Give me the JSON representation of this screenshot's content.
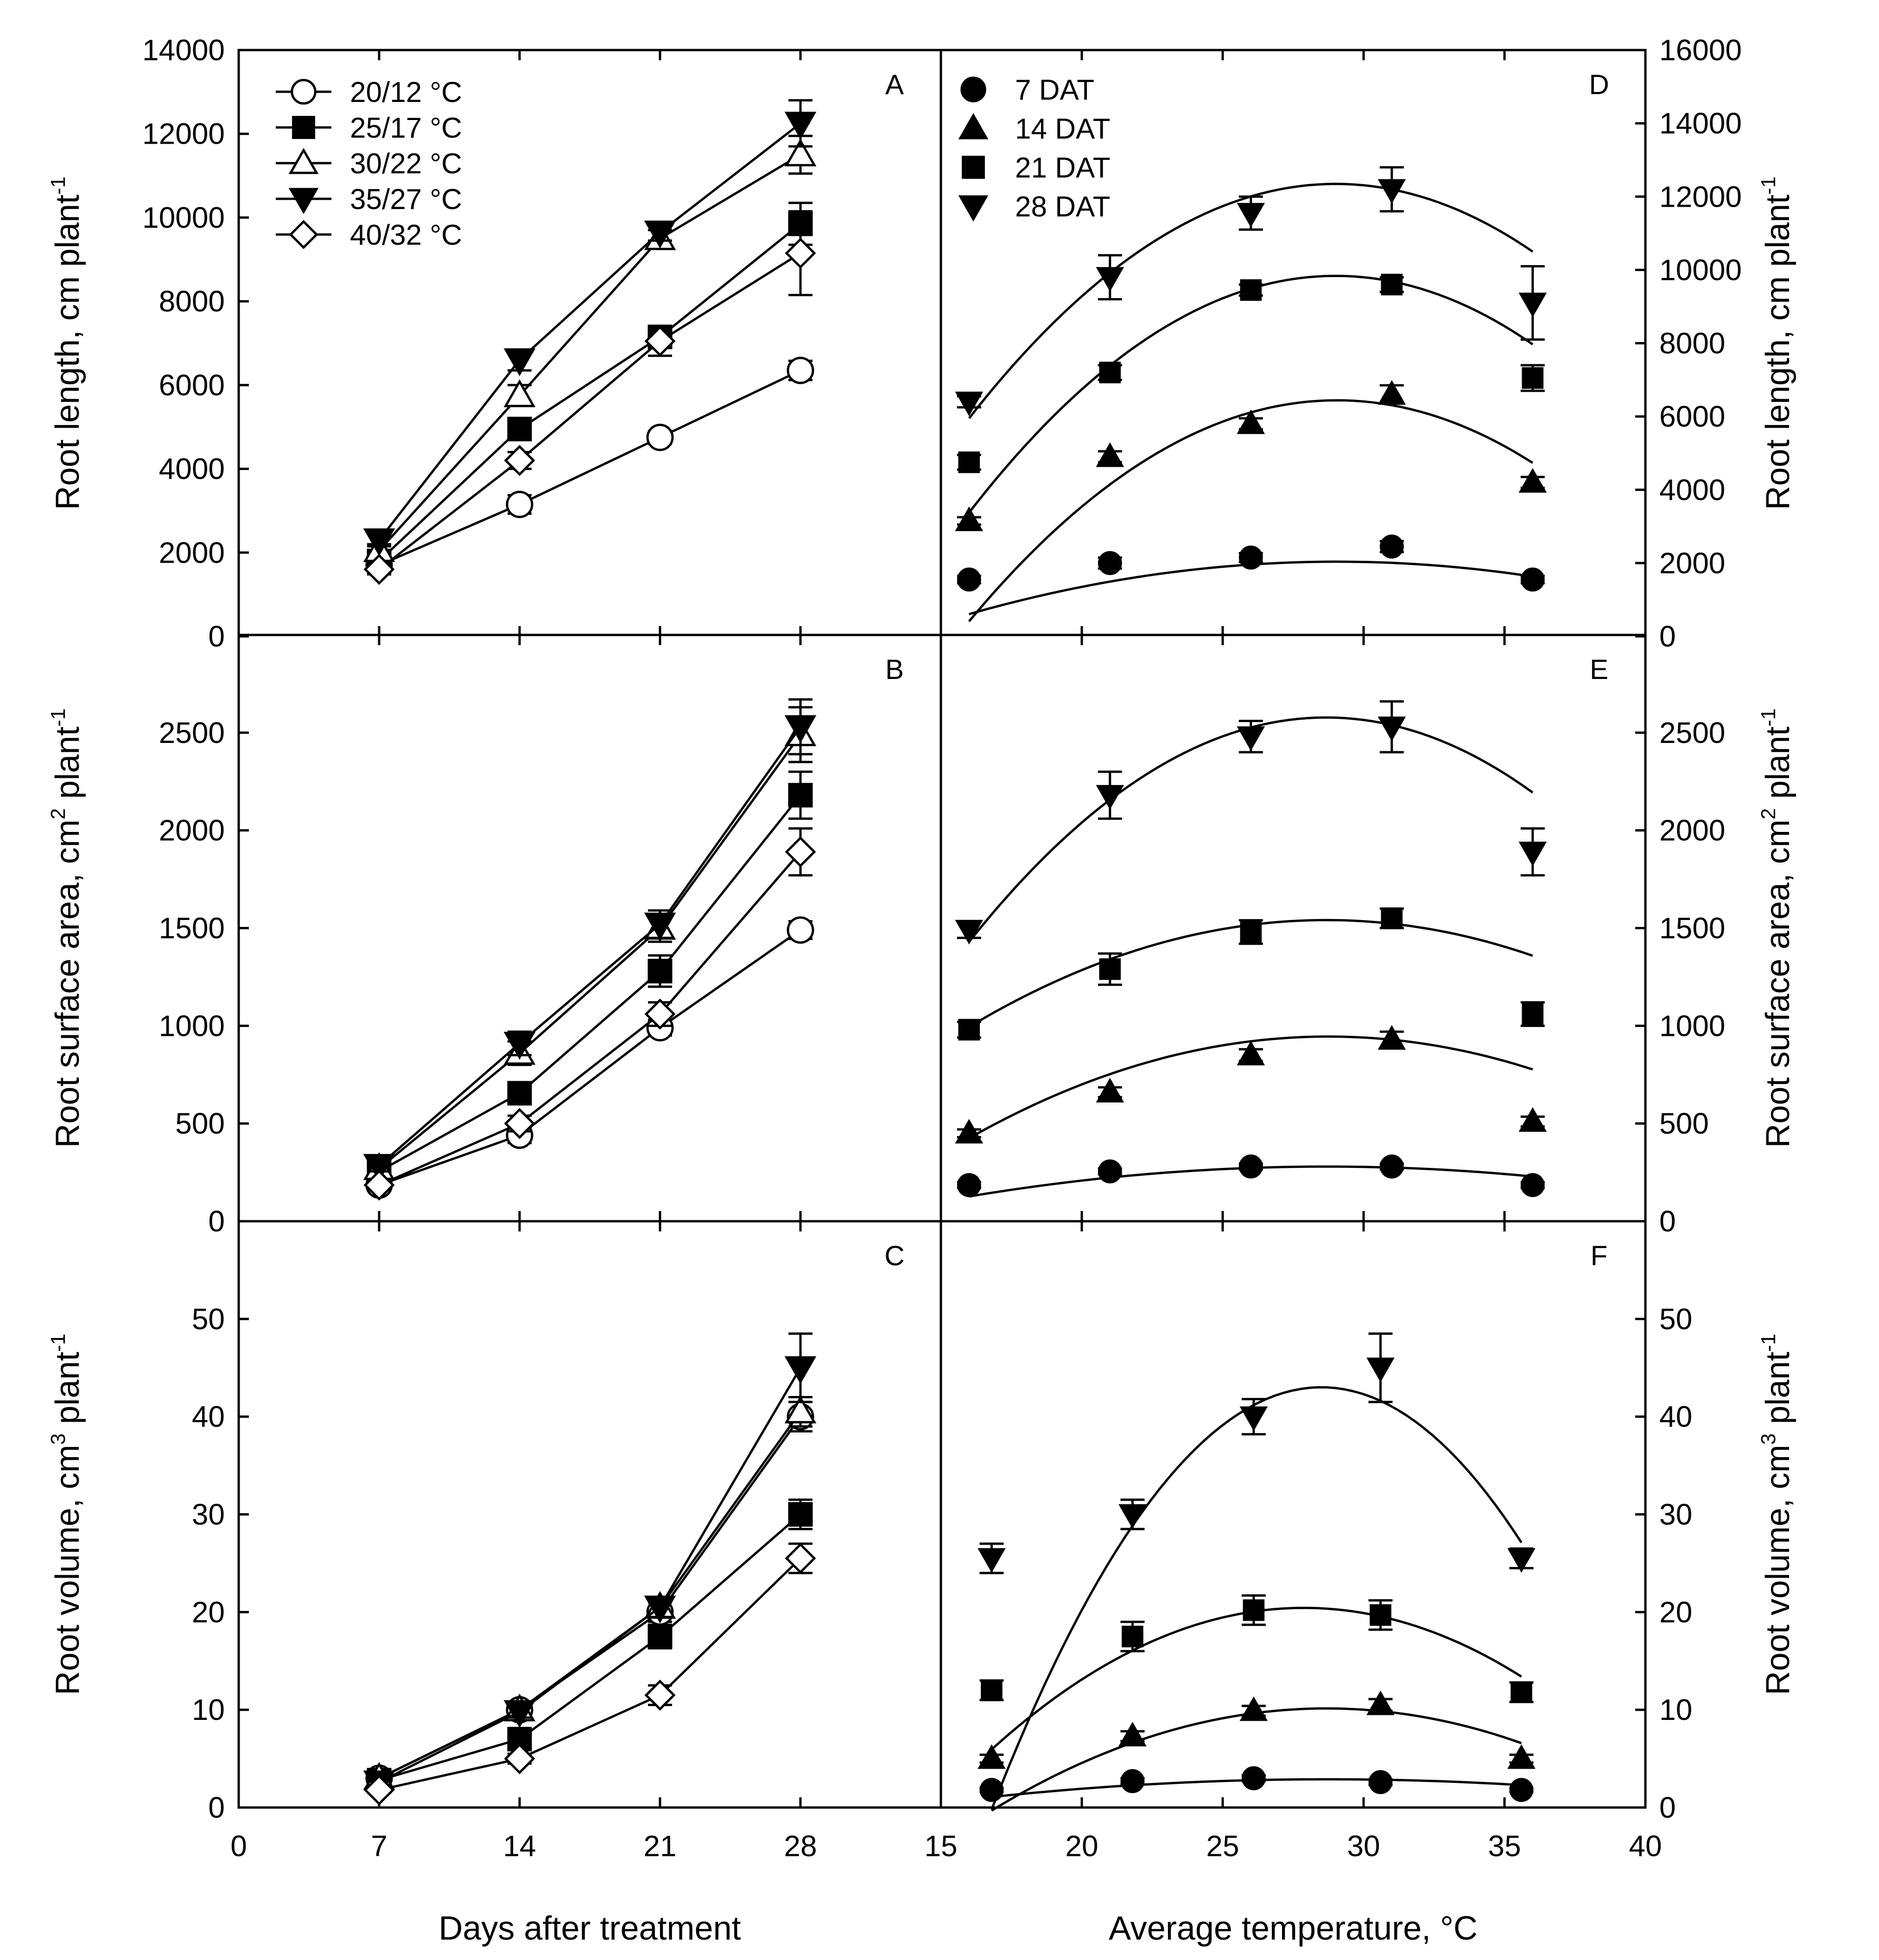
{
  "chart_data": [
    {
      "panel": "A",
      "type": "line",
      "ylabel": "Root length, cm plant",
      "ylabel_sup": "-1",
      "xticks": [
        "0",
        "7",
        "14",
        "21",
        "28"
      ],
      "xlim": [
        0,
        35
      ],
      "ylim": [
        0,
        14000
      ],
      "yticks": [
        "0",
        "2000",
        "4000",
        "6000",
        "8000",
        "10000",
        "12000",
        "14000"
      ],
      "legend": [
        "20/12 °C",
        "25/17 °C",
        "30/22 °C",
        "35/27 °C",
        "40/32 °C"
      ],
      "x": [
        7,
        14,
        21,
        28
      ],
      "series": [
        {
          "name": "20/12 °C",
          "marker": "circle-open",
          "values": [
            1700,
            3150,
            4750,
            6350
          ],
          "errors": [
            120,
            220,
            150,
            230
          ]
        },
        {
          "name": "25/17 °C",
          "marker": "square-filled",
          "values": [
            1800,
            4950,
            7150,
            9850
          ],
          "errors": [
            120,
            150,
            200,
            500
          ]
        },
        {
          "name": "30/22 °C",
          "marker": "triangle-up-open",
          "values": [
            2050,
            5750,
            9500,
            11500
          ],
          "errors": [
            150,
            250,
            200,
            450
          ]
        },
        {
          "name": "35/27 °C",
          "marker": "triangle-down-filled",
          "values": [
            2300,
            6600,
            9650,
            12250
          ],
          "errors": [
            150,
            250,
            200,
            550
          ]
        },
        {
          "name": "40/32 °C",
          "marker": "diamond-open",
          "values": [
            1600,
            4200,
            7050,
            9150
          ],
          "errors": [
            120,
            200,
            350,
            1000
          ]
        }
      ]
    },
    {
      "panel": "B",
      "type": "line",
      "ylabel": "Root surface area, cm",
      "ylabel_sup": "2",
      "ylabel_tail": " plant",
      "ylabel_sup2": "-1",
      "xticks": [
        "0",
        "7",
        "14",
        "21",
        "28"
      ],
      "xlim": [
        0,
        35
      ],
      "ylim": [
        0,
        3000
      ],
      "yticks": [
        "0",
        "500",
        "1000",
        "1500",
        "2000",
        "2500"
      ],
      "x": [
        7,
        14,
        21,
        28
      ],
      "series": [
        {
          "name": "20/12 °C",
          "marker": "circle-open",
          "values": [
            185,
            440,
            990,
            1490
          ],
          "errors": [
            25,
            40,
            40,
            45
          ]
        },
        {
          "name": "25/17 °C",
          "marker": "square-filled",
          "values": [
            255,
            655,
            1280,
            2180
          ],
          "errors": [
            30,
            35,
            80,
            120
          ]
        },
        {
          "name": "30/22 °C",
          "marker": "triangle-up-open",
          "values": [
            270,
            860,
            1500,
            2490
          ],
          "errors": [
            30,
            60,
            70,
            140
          ]
        },
        {
          "name": "35/27 °C",
          "marker": "triangle-down-filled",
          "values": [
            285,
            910,
            1520,
            2530
          ],
          "errors": [
            30,
            60,
            70,
            140
          ]
        },
        {
          "name": "40/32 °C",
          "marker": "diamond-open",
          "values": [
            185,
            500,
            1060,
            1890
          ],
          "errors": [
            25,
            40,
            60,
            120
          ]
        }
      ]
    },
    {
      "panel": "C",
      "type": "line",
      "ylabel": "Root volume, cm",
      "ylabel_sup": "3",
      "ylabel_tail": " plant",
      "ylabel_sup2": "-1",
      "xlabel": "Days after treatment",
      "xticks": [
        "0",
        "7",
        "14",
        "21",
        "28"
      ],
      "xlim": [
        0,
        35
      ],
      "ylim": [
        0,
        60
      ],
      "yticks": [
        "0",
        "10",
        "20",
        "30",
        "40",
        "50"
      ],
      "x": [
        7,
        14,
        21,
        28
      ],
      "series": [
        {
          "name": "20/12 °C",
          "marker": "circle-open",
          "values": [
            3,
            10,
            20,
            40
          ],
          "errors": [
            0.3,
            0.6,
            1.0,
            1.5
          ]
        },
        {
          "name": "25/17 °C",
          "marker": "square-filled",
          "values": [
            2.8,
            7,
            17.5,
            30
          ],
          "errors": [
            0.3,
            0.8,
            1.2,
            1.5
          ]
        },
        {
          "name": "30/22 °C",
          "marker": "triangle-up-open",
          "values": [
            3,
            10,
            20.5,
            40.5
          ],
          "errors": [
            0.3,
            0.6,
            1.0,
            1.5
          ]
        },
        {
          "name": "35/27 °C",
          "marker": "triangle-down-filled",
          "values": [
            2.6,
            9.8,
            20.5,
            45
          ],
          "errors": [
            0.3,
            0.6,
            1.0,
            3.5
          ]
        },
        {
          "name": "40/32 °C",
          "marker": "diamond-open",
          "values": [
            1.8,
            5,
            11.5,
            25.5
          ],
          "errors": [
            0.3,
            0.5,
            1.0,
            1.5
          ]
        }
      ]
    },
    {
      "panel": "D",
      "type": "scatter",
      "ylabel": "Root length, cm plant",
      "ylabel_sup": "-1",
      "xticks": [
        "15",
        "20",
        "25",
        "30",
        "35",
        "40"
      ],
      "xlim": [
        15,
        40
      ],
      "ylim": [
        0,
        16000
      ],
      "yticks": [
        "0",
        "2000",
        "4000",
        "6000",
        "8000",
        "10000",
        "12000",
        "14000",
        "16000"
      ],
      "legend": [
        "7 DAT",
        "14 DAT",
        "21 DAT",
        "28 DAT"
      ],
      "series": [
        {
          "name": "7 DAT",
          "marker": "circle-filled",
          "x": [
            16,
            21,
            26,
            31,
            36
          ],
          "values": [
            1550,
            2000,
            2150,
            2450,
            1550
          ],
          "errors": [
            100,
            150,
            120,
            150,
            100
          ],
          "fit": [
            -8.4,
            488,
            -5050
          ]
        },
        {
          "name": "14 DAT",
          "marker": "triangle-up-filled",
          "x": [
            16,
            21,
            26,
            31,
            36
          ],
          "values": [
            3150,
            4900,
            5800,
            6600,
            4200
          ],
          "errors": [
            100,
            150,
            150,
            250,
            150
          ],
          "fit": [
            -35.4,
            2057,
            -23440
          ]
        },
        {
          "name": "21 DAT",
          "marker": "square-filled",
          "x": [
            16,
            21,
            26,
            31,
            36
          ],
          "values": [
            4750,
            7200,
            9450,
            9600,
            7050
          ],
          "errors": [
            200,
            200,
            150,
            200,
            350
          ],
          "fit": [
            -38.2,
            2216,
            -22300
          ]
        },
        {
          "name": "28 DAT",
          "marker": "triangle-down-filled",
          "x": [
            16,
            21,
            26,
            31,
            36
          ],
          "values": [
            6400,
            9800,
            11550,
            12200,
            9100
          ],
          "errors": [
            150,
            600,
            450,
            600,
            1000
          ],
          "fit": [
            -37.8,
            2193,
            -19460
          ]
        }
      ]
    },
    {
      "panel": "E",
      "type": "scatter",
      "ylabel": "Root surface area, cm",
      "ylabel_sup": "2",
      "ylabel_tail": " plant",
      "ylabel_sup2": "-1",
      "xticks": [
        "15",
        "20",
        "25",
        "30",
        "35",
        "40"
      ],
      "xlim": [
        15,
        40
      ],
      "ylim": [
        0,
        3000
      ],
      "yticks": [
        "0",
        "500",
        "1000",
        "1500",
        "2000",
        "2500"
      ],
      "series": [
        {
          "name": "7 DAT",
          "marker": "circle-filled",
          "x": [
            16,
            21,
            26,
            31,
            36
          ],
          "values": [
            185,
            255,
            280,
            280,
            185
          ],
          "errors": [
            15,
            15,
            15,
            15,
            15
          ],
          "fit": [
            -0.95,
            54.5,
            -502
          ]
        },
        {
          "name": "14 DAT",
          "marker": "triangle-up-filled",
          "x": [
            16,
            21,
            26,
            31,
            36
          ],
          "values": [
            450,
            660,
            850,
            930,
            510
          ],
          "errors": [
            20,
            25,
            30,
            40,
            25
          ],
          "fit": [
            -3.2,
            184,
            -1700
          ]
        },
        {
          "name": "21 DAT",
          "marker": "square-filled",
          "x": [
            16,
            21,
            26,
            31,
            36
          ],
          "values": [
            980,
            1290,
            1480,
            1550,
            1060
          ],
          "errors": [
            40,
            80,
            60,
            50,
            60
          ],
          "fit": [
            -3.4,
            195,
            -1255
          ]
        },
        {
          "name": "28 DAT",
          "marker": "triangle-down-filled",
          "x": [
            16,
            21,
            26,
            31,
            36
          ],
          "values": [
            1490,
            2180,
            2480,
            2530,
            1890
          ],
          "errors": [
            40,
            120,
            80,
            130,
            120
          ],
          "fit": [
            -7.15,
            410,
            -3300
          ]
        }
      ]
    },
    {
      "panel": "F",
      "type": "scatter",
      "ylabel": "Root volume, cm",
      "ylabel_sup": "3",
      "ylabel_tail": " plant",
      "ylabel_sup2": "-1",
      "xlabel": "Average temperature, °C",
      "xticks": [
        "15",
        "20",
        "25",
        "30",
        "35",
        "40"
      ],
      "xlim": [
        15,
        40
      ],
      "ylim": [
        0,
        60
      ],
      "yticks": [
        "0",
        "10",
        "20",
        "30",
        "40",
        "50"
      ],
      "series": [
        {
          "name": "7 DAT",
          "marker": "circle-filled",
          "x": [
            16.8,
            21.8,
            26.1,
            30.6,
            35.6
          ],
          "values": [
            1.8,
            2.7,
            3,
            2.6,
            1.8
          ],
          "errors": [
            0.2,
            0.3,
            0.3,
            0.3,
            0.2
          ],
          "fit": [
            -0.0127,
            0.73,
            -7.6
          ]
        },
        {
          "name": "14 DAT",
          "marker": "triangle-up-filled",
          "x": [
            16.8,
            21.8,
            26.1,
            30.6,
            35.6
          ],
          "values": [
            5,
            7.3,
            9.9,
            10.5,
            5
          ],
          "errors": [
            0.4,
            0.5,
            0.5,
            0.6,
            0.4
          ],
          "fit": [
            -0.0741,
            4.25,
            -50.8
          ]
        },
        {
          "name": "21 DAT",
          "marker": "square-filled",
          "x": [
            16.8,
            21.8,
            26.1,
            30.6,
            35.6
          ],
          "values": [
            12,
            17.5,
            20.2,
            19.7,
            11.8
          ],
          "errors": [
            1.0,
            1.5,
            1.5,
            1.5,
            1.0
          ],
          "fit": [
            -0.118,
            6.58,
            -71.3
          ]
        },
        {
          "name": "28 DAT",
          "marker": "triangle-down-filled",
          "x": [
            16.8,
            21.8,
            26.1,
            30.6,
            35.6
          ],
          "values": [
            25.5,
            30,
            40,
            45,
            25.5
          ],
          "errors": [
            1.5,
            1.5,
            1.8,
            3.5,
            1.0
          ],
          "fit": [
            -0.3155,
            17.985,
            -213.3
          ]
        }
      ]
    }
  ]
}
